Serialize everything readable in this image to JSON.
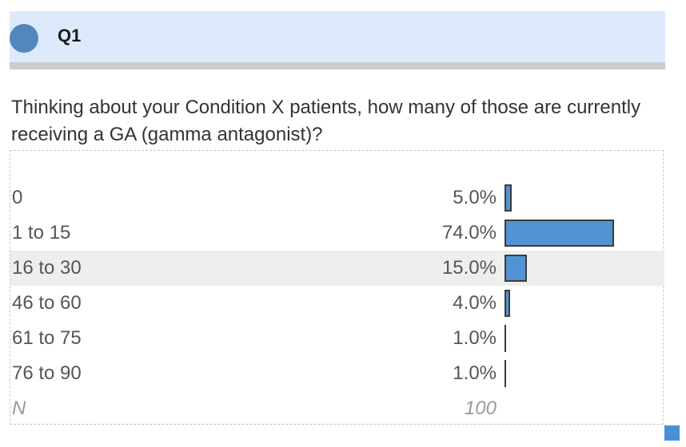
{
  "question": {
    "number": "Q1",
    "text": "Thinking about your Condition X patients, how many of those are currently receiving a GA (gamma antagonist)?"
  },
  "colors": {
    "header_bg": "#ddeafb",
    "accent": "#5286bd",
    "bar_fill": "#5294d3"
  },
  "chart_data": {
    "type": "bar",
    "orientation": "horizontal",
    "categories": [
      "0",
      "1 to 15",
      "16 to 30",
      "46 to 60",
      "61 to 75",
      "76 to 90"
    ],
    "values": [
      5.0,
      74.0,
      15.0,
      4.0,
      1.0,
      1.0
    ],
    "value_labels": [
      "5.0%",
      "74.0%",
      "15.0%",
      "4.0%",
      "1.0%",
      "1.0%"
    ],
    "unit": "%",
    "xlim": [
      0,
      100
    ],
    "highlighted_row": 2,
    "n_label": "N",
    "n_value": "100"
  }
}
